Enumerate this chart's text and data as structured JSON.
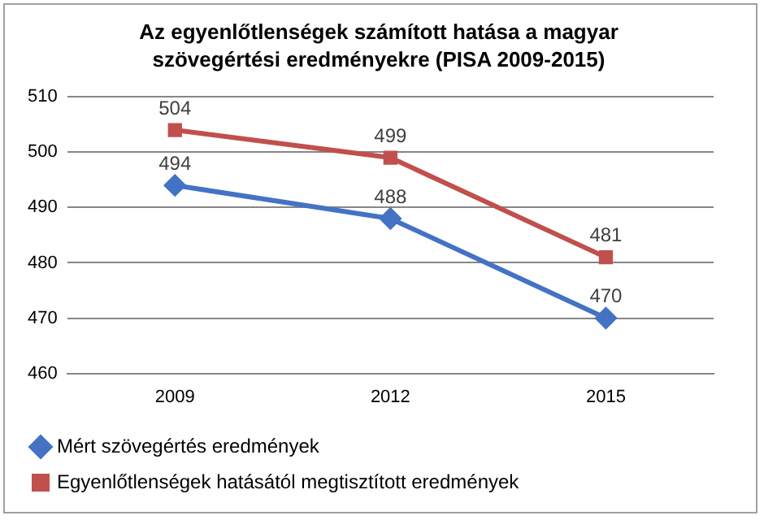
{
  "chart_data": {
    "type": "line",
    "title": "Az egyenlőtlenségek számított hatása a magyar szövegértési eredményekre (PISA 2009-2015)",
    "categories": [
      "2009",
      "2012",
      "2015"
    ],
    "series": [
      {
        "name": "Mért szövegértés eredmények",
        "color": "#4472c4",
        "values": [
          494,
          488,
          470
        ],
        "marker": "diamond"
      },
      {
        "name": "Egyenlőtlenségek hatásától megtisztított eredmények",
        "color": "#c0504d",
        "values": [
          504,
          499,
          481
        ],
        "marker": "square"
      }
    ],
    "ylim": [
      460,
      510
    ],
    "yticks": [
      460,
      470,
      480,
      490,
      500,
      510
    ],
    "grid": "y",
    "legend": "bottom",
    "data_labels": true
  }
}
